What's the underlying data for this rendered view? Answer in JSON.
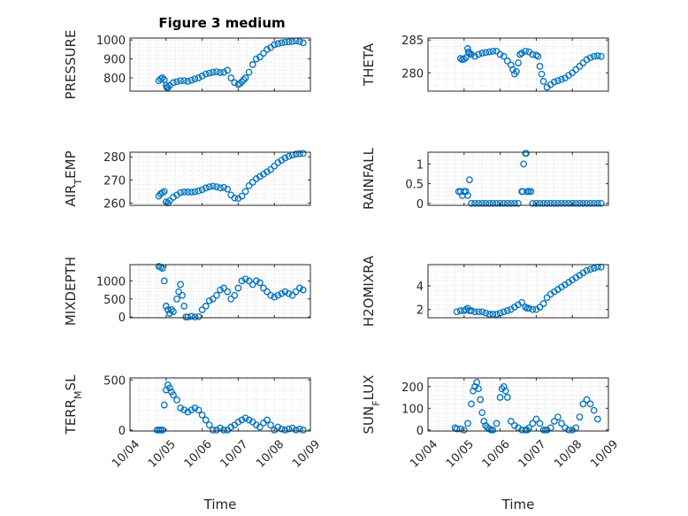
{
  "figure": {
    "title": "Figure 3 medium"
  },
  "chart_data": [
    {
      "type": "scatter",
      "ylabel": "PRESSURE",
      "ylabel_sub": "",
      "xlim": [
        "10/04",
        "10/09"
      ],
      "ylim": [
        730,
        1010
      ],
      "yticks": [
        "1000",
        "900",
        "800"
      ],
      "ytick_values": [
        1000,
        900,
        800
      ],
      "xticks": [
        "10/04",
        "10/05",
        "10/06",
        "10/07",
        "10/08",
        "10/09"
      ],
      "grid": true,
      "series": [
        {
          "x": [
            0.8,
            0.85,
            0.9,
            0.95,
            1.0,
            1.02,
            1.05,
            1.1,
            1.2,
            1.3,
            1.4,
            1.5,
            1.6,
            1.7,
            1.8,
            1.9,
            2.0,
            2.1,
            2.2,
            2.3,
            2.4,
            2.5,
            2.6,
            2.7,
            2.8,
            2.9,
            3.0,
            3.05,
            3.1,
            3.15,
            3.2,
            3.3,
            3.4,
            3.5,
            3.6,
            3.7,
            3.8,
            3.9,
            4.0,
            4.1,
            4.2,
            4.3,
            4.4,
            4.5,
            4.6,
            4.7,
            4.8
          ],
          "y": [
            785,
            795,
            800,
            790,
            760,
            750,
            748,
            760,
            775,
            780,
            785,
            785,
            782,
            788,
            795,
            800,
            810,
            820,
            825,
            830,
            832,
            828,
            830,
            840,
            800,
            775,
            765,
            770,
            780,
            790,
            800,
            830,
            870,
            900,
            910,
            930,
            950,
            960,
            975,
            980,
            985,
            988,
            990,
            992,
            995,
            992,
            985
          ]
        }
      ]
    },
    {
      "type": "scatter",
      "ylabel": "THETA",
      "ylabel_sub": "",
      "xlim": [
        "10/04",
        "10/09"
      ],
      "ylim": [
        277.2,
        285.3
      ],
      "yticks": [
        "285",
        "280"
      ],
      "ytick_values": [
        285,
        280
      ],
      "xticks": [
        "10/04",
        "10/05",
        "10/06",
        "10/07",
        "10/08",
        "10/09"
      ],
      "grid": true,
      "series": [
        {
          "x": [
            0.9,
            0.95,
            1.0,
            1.05,
            1.1,
            1.12,
            1.15,
            1.2,
            1.3,
            1.4,
            1.5,
            1.6,
            1.7,
            1.8,
            1.9,
            2.0,
            2.1,
            2.2,
            2.3,
            2.35,
            2.4,
            2.45,
            2.5,
            2.55,
            2.6,
            2.7,
            2.8,
            2.9,
            3.0,
            3.05,
            3.1,
            3.15,
            3.2,
            3.3,
            3.4,
            3.5,
            3.6,
            3.7,
            3.8,
            3.9,
            4.0,
            4.1,
            4.2,
            4.3,
            4.4,
            4.5,
            4.6,
            4.7,
            4.8
          ],
          "y": [
            282.2,
            282.0,
            282.1,
            282.3,
            283.7,
            283.2,
            283.0,
            282.8,
            282.5,
            282.8,
            283.0,
            283.1,
            283.2,
            283.3,
            283.3,
            282.8,
            282.5,
            281.8,
            281.2,
            280.5,
            279.8,
            280.2,
            281.5,
            282.8,
            283.0,
            283.3,
            283.2,
            282.8,
            282.7,
            282.5,
            281.0,
            279.8,
            278.7,
            277.8,
            278.2,
            278.6,
            278.8,
            279.0,
            279.2,
            279.6,
            280.0,
            280.5,
            281.0,
            281.5,
            282.0,
            282.3,
            282.5,
            282.6,
            282.5
          ]
        }
      ]
    },
    {
      "type": "scatter",
      "ylabel": "AIR",
      "ylabel_sub": "T",
      "ylabel_rest": "EMP",
      "xlim": [
        "10/04",
        "10/09"
      ],
      "ylim": [
        259,
        282
      ],
      "yticks": [
        "280",
        "270",
        "260"
      ],
      "ytick_values": [
        280,
        270,
        260
      ],
      "xticks": [
        "10/04",
        "10/05",
        "10/06",
        "10/07",
        "10/08",
        "10/09"
      ],
      "grid": true,
      "series": [
        {
          "x": [
            0.8,
            0.85,
            0.9,
            0.95,
            1.0,
            1.05,
            1.1,
            1.2,
            1.3,
            1.4,
            1.5,
            1.6,
            1.7,
            1.8,
            1.9,
            2.0,
            2.1,
            2.2,
            2.3,
            2.4,
            2.5,
            2.6,
            2.7,
            2.8,
            2.9,
            3.0,
            3.1,
            3.2,
            3.3,
            3.4,
            3.5,
            3.6,
            3.7,
            3.8,
            3.9,
            4.0,
            4.1,
            4.2,
            4.3,
            4.4,
            4.5,
            4.6,
            4.7,
            4.8
          ],
          "y": [
            263,
            264,
            264.5,
            265,
            260.5,
            260,
            261,
            262.5,
            263.5,
            264.5,
            264.8,
            264.8,
            264.7,
            264.9,
            265.2,
            265.8,
            266.5,
            267.0,
            267.3,
            267.0,
            266.5,
            266.8,
            266.0,
            263.5,
            262.2,
            262.0,
            263.0,
            265.0,
            267.5,
            269.0,
            270.5,
            271.5,
            272.5,
            273.5,
            274.5,
            276.0,
            277.5,
            278.5,
            279.5,
            280.2,
            280.8,
            281.2,
            281.4,
            281.5
          ]
        }
      ]
    },
    {
      "type": "scatter",
      "ylabel": "RAINFALL",
      "ylabel_sub": "",
      "xlim": [
        "10/04",
        "10/09"
      ],
      "ylim": [
        -0.05,
        1.3
      ],
      "yticks": [
        "1",
        "0.5",
        "0"
      ],
      "ytick_values": [
        1,
        0.5,
        0
      ],
      "xticks": [
        "10/04",
        "10/05",
        "10/06",
        "10/07",
        "10/08",
        "10/09"
      ],
      "grid": true,
      "series": [
        {
          "x": [
            0.85,
            0.9,
            0.95,
            1.0,
            1.05,
            1.1,
            1.15,
            1.2,
            1.3,
            1.4,
            1.5,
            1.6,
            1.7,
            1.8,
            1.9,
            2.0,
            2.1,
            2.2,
            2.3,
            2.4,
            2.5,
            2.6,
            2.62,
            2.65,
            2.7,
            2.72,
            2.75,
            2.8,
            2.85,
            2.9,
            3.0,
            3.1,
            3.2,
            3.3,
            3.4,
            3.5,
            3.6,
            3.7,
            3.8,
            3.9,
            4.0,
            4.1,
            4.2,
            4.3,
            4.4,
            4.5,
            4.6,
            4.7,
            4.8
          ],
          "y": [
            0.3,
            0.3,
            0.2,
            0.3,
            0.3,
            0.2,
            0.6,
            0.0,
            0.0,
            0.0,
            0.0,
            0.0,
            0.0,
            0.0,
            0.0,
            0.0,
            0.0,
            0.0,
            0.0,
            0.0,
            0.0,
            0.3,
            0.3,
            1.0,
            1.27,
            1.27,
            0.3,
            0.3,
            0.3,
            0.0,
            0.0,
            0.0,
            0.0,
            0.0,
            0.0,
            0.0,
            0.0,
            0.0,
            0.0,
            0.0,
            0.0,
            0.0,
            0.0,
            0.0,
            0.0,
            0.0,
            0.0,
            0.0,
            0.0
          ]
        }
      ]
    },
    {
      "type": "scatter",
      "ylabel": "MIXDEPTH",
      "ylabel_sub": "",
      "xlim": [
        "10/04",
        "10/09"
      ],
      "ylim": [
        -20,
        1450
      ],
      "yticks": [
        "1000",
        "500",
        "0"
      ],
      "ytick_values": [
        1000,
        500,
        0
      ],
      "xticks": [
        "10/04",
        "10/05",
        "10/06",
        "10/07",
        "10/08",
        "10/09"
      ],
      "grid": true,
      "series": [
        {
          "x": [
            0.8,
            0.85,
            0.9,
            0.95,
            1.0,
            1.05,
            1.1,
            1.15,
            1.2,
            1.3,
            1.35,
            1.4,
            1.45,
            1.5,
            1.55,
            1.6,
            1.7,
            1.8,
            1.9,
            2.0,
            2.1,
            2.2,
            2.3,
            2.4,
            2.5,
            2.6,
            2.7,
            2.8,
            2.9,
            3.0,
            3.1,
            3.2,
            3.3,
            3.4,
            3.5,
            3.6,
            3.7,
            3.8,
            3.9,
            4.0,
            4.1,
            4.2,
            4.3,
            4.4,
            4.5,
            4.6,
            4.7,
            4.8
          ],
          "y": [
            1400,
            1380,
            1350,
            1000,
            300,
            200,
            100,
            200,
            150,
            500,
            700,
            900,
            600,
            300,
            0,
            0,
            20,
            0,
            10,
            200,
            300,
            450,
            500,
            600,
            750,
            800,
            700,
            500,
            600,
            800,
            1000,
            1050,
            1000,
            900,
            1000,
            950,
            800,
            700,
            600,
            550,
            600,
            650,
            700,
            650,
            600,
            700,
            800,
            750
          ]
        }
      ]
    },
    {
      "type": "scatter",
      "ylabel": "H2OMIXRA",
      "ylabel_sub": "",
      "xlim": [
        "10/04",
        "10/09"
      ],
      "ylim": [
        1.3,
        5.8
      ],
      "yticks": [
        "4",
        "2"
      ],
      "ytick_values": [
        4,
        2
      ],
      "xticks": [
        "10/04",
        "10/05",
        "10/06",
        "10/07",
        "10/08",
        "10/09"
      ],
      "grid": true,
      "series": [
        {
          "x": [
            0.8,
            0.9,
            1.0,
            1.05,
            1.1,
            1.15,
            1.2,
            1.3,
            1.4,
            1.5,
            1.6,
            1.7,
            1.8,
            1.9,
            2.0,
            2.1,
            2.2,
            2.3,
            2.4,
            2.5,
            2.6,
            2.7,
            2.75,
            2.8,
            2.9,
            3.0,
            3.1,
            3.2,
            3.3,
            3.4,
            3.5,
            3.6,
            3.7,
            3.8,
            3.9,
            4.0,
            4.1,
            4.2,
            4.3,
            4.4,
            4.5,
            4.6,
            4.7,
            4.8
          ],
          "y": [
            1.8,
            1.9,
            1.9,
            2.0,
            2.1,
            1.9,
            1.9,
            1.8,
            1.8,
            1.8,
            1.7,
            1.6,
            1.6,
            1.6,
            1.7,
            1.8,
            1.9,
            2.0,
            2.2,
            2.4,
            2.6,
            2.2,
            2.1,
            2.1,
            2.0,
            2.0,
            2.2,
            2.5,
            3.0,
            3.3,
            3.5,
            3.7,
            3.9,
            4.1,
            4.3,
            4.5,
            4.7,
            4.9,
            5.1,
            5.3,
            5.4,
            5.5,
            5.6,
            5.6
          ]
        }
      ]
    },
    {
      "type": "scatter",
      "ylabel": "TERR",
      "ylabel_sub": "M",
      "ylabel_rest": "SL",
      "xlim": [
        "10/04",
        "10/09"
      ],
      "ylim": [
        -10,
        520
      ],
      "yticks": [
        "500",
        "0"
      ],
      "ytick_values": [
        500,
        0
      ],
      "xticks": [
        "10/04",
        "10/05",
        "10/06",
        "10/07",
        "10/08",
        "10/09"
      ],
      "grid": true,
      "series": [
        {
          "x": [
            0.75,
            0.8,
            0.85,
            0.9,
            0.95,
            1.0,
            1.05,
            1.1,
            1.15,
            1.2,
            1.3,
            1.4,
            1.5,
            1.6,
            1.7,
            1.8,
            1.9,
            2.0,
            2.1,
            2.2,
            2.3,
            2.4,
            2.5,
            2.6,
            2.7,
            2.8,
            2.9,
            3.0,
            3.1,
            3.2,
            3.3,
            3.4,
            3.5,
            3.6,
            3.7,
            3.8,
            3.9,
            4.0,
            4.1,
            4.2,
            4.3,
            4.4,
            4.5,
            4.6,
            4.7,
            4.8
          ],
          "y": [
            0,
            0,
            0,
            0,
            250,
            400,
            450,
            420,
            380,
            350,
            300,
            220,
            200,
            180,
            200,
            220,
            200,
            150,
            100,
            50,
            0,
            0,
            20,
            0,
            0,
            30,
            50,
            80,
            100,
            120,
            100,
            80,
            50,
            30,
            70,
            100,
            50,
            0,
            30,
            10,
            0,
            10,
            20,
            0,
            10,
            0
          ]
        }
      ]
    },
    {
      "type": "scatter",
      "ylabel": "SUN",
      "ylabel_sub": "F",
      "ylabel_rest": "LUX",
      "xlim": [
        "10/04",
        "10/09"
      ],
      "ylim": [
        -5,
        240
      ],
      "yticks": [
        "200",
        "100",
        "0"
      ],
      "ytick_values": [
        200,
        100,
        0
      ],
      "xticks": [
        "10/04",
        "10/05",
        "10/06",
        "10/07",
        "10/08",
        "10/09"
      ],
      "grid": true,
      "series": [
        {
          "x": [
            0.75,
            0.8,
            0.9,
            1.0,
            1.1,
            1.2,
            1.25,
            1.3,
            1.35,
            1.4,
            1.45,
            1.5,
            1.55,
            1.6,
            1.65,
            1.7,
            1.75,
            1.8,
            1.9,
            2.0,
            2.05,
            2.1,
            2.15,
            2.2,
            2.3,
            2.4,
            2.5,
            2.6,
            2.7,
            2.75,
            2.8,
            2.9,
            3.0,
            3.1,
            3.2,
            3.25,
            3.3,
            3.4,
            3.5,
            3.6,
            3.7,
            3.8,
            3.9,
            4.0,
            4.1,
            4.2,
            4.3,
            4.4,
            4.5,
            4.6,
            4.7
          ],
          "y": [
            10,
            5,
            5,
            0,
            30,
            120,
            180,
            200,
            220,
            190,
            140,
            80,
            40,
            20,
            10,
            5,
            0,
            0,
            30,
            150,
            190,
            200,
            180,
            150,
            40,
            20,
            10,
            0,
            0,
            0,
            10,
            30,
            50,
            30,
            0,
            0,
            0,
            10,
            40,
            60,
            30,
            10,
            0,
            0,
            10,
            60,
            120,
            140,
            120,
            90,
            50
          ]
        }
      ]
    }
  ],
  "shared": {
    "xlabel": "Time"
  }
}
